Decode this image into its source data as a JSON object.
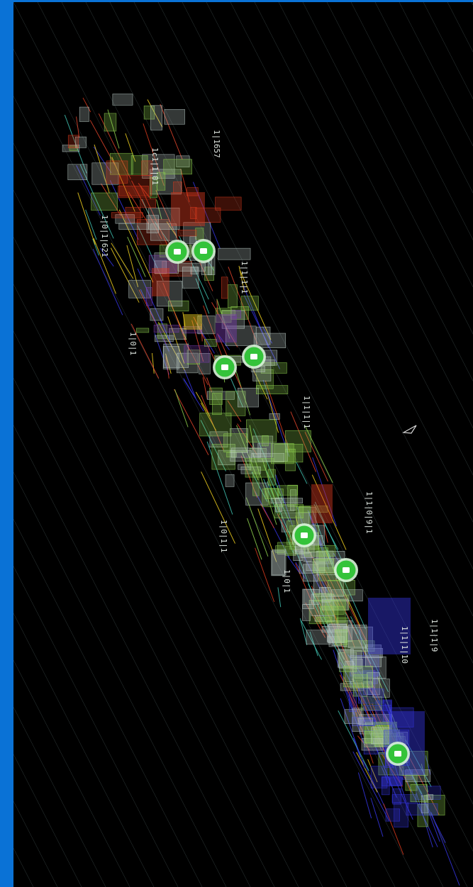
{
  "colors": {
    "frame": "#0a72d6",
    "background": "#000000",
    "grid": "#5a6e6e",
    "marker_fill": "#34c33a",
    "marker_ring": "#d8f5d8",
    "marker_glyph": "#ffffff",
    "cluster": [
      "#b9c9c4",
      "#8fd14f",
      "#e0452c",
      "#d83a1e",
      "#3535e0",
      "#7a3cb0",
      "#f0d020",
      "#40c0b0"
    ]
  },
  "markers": [
    {
      "id": "m1",
      "icon": "camera-pin-icon"
    },
    {
      "id": "m2",
      "icon": "camera-pin-icon"
    },
    {
      "id": "m3",
      "icon": "camera-pin-icon"
    },
    {
      "id": "m4",
      "icon": "camera-pin-icon"
    },
    {
      "id": "m5",
      "icon": "camera-pin-icon"
    },
    {
      "id": "m6",
      "icon": "camera-pin-icon"
    },
    {
      "id": "m7",
      "icon": "camera-pin-icon"
    }
  ],
  "cursor_icon": "arrow-cursor-icon"
}
